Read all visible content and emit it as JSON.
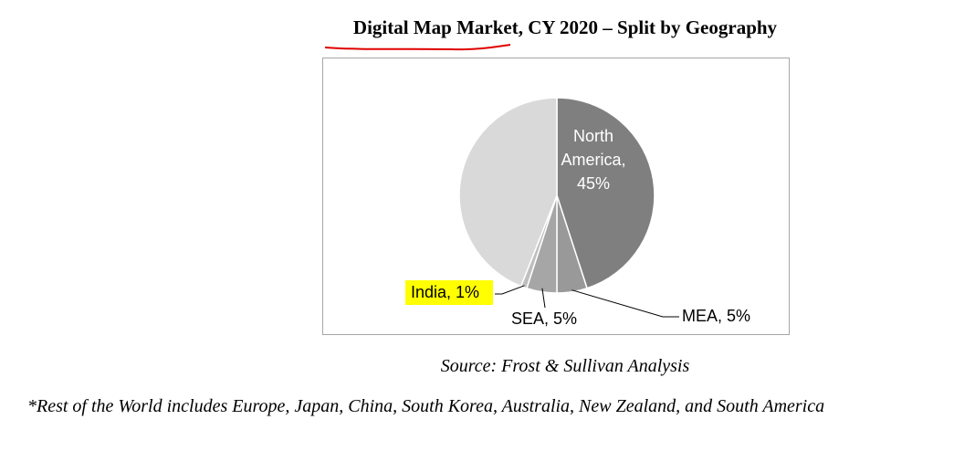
{
  "title": "Digital Map Market, CY 2020 – Split by Geography",
  "source": "Source: Frost & Sullivan Analysis",
  "footnote": "*Rest of the World includes Europe, Japan, China, South Korea, Australia, New Zealand, and South America",
  "colors": {
    "north_america": "#7f7f7f",
    "mea": "#999999",
    "sea": "#a6a6a6",
    "india": "#bfbfbf",
    "rest_of_world": "#d9d9d9",
    "annotation_highlight": "#ffff00",
    "annotation_underline": "#e00000"
  },
  "chart_data": {
    "type": "pie",
    "title": "Digital Map Market, CY 2020 – Split by Geography",
    "slices": [
      {
        "label": "North America",
        "value": 45,
        "display": [
          "North",
          "America,",
          "45%"
        ]
      },
      {
        "label": "MEA",
        "value": 5,
        "display": [
          "MEA, 5%"
        ]
      },
      {
        "label": "SEA",
        "value": 5,
        "display": [
          "SEA, 5%"
        ]
      },
      {
        "label": "India",
        "value": 1,
        "display": [
          "India, 1%"
        ]
      },
      {
        "label": "",
        "value": 44,
        "display": []
      }
    ],
    "start_angle": "12 o'clock",
    "direction": "clockwise",
    "highlighted_label": "India"
  }
}
